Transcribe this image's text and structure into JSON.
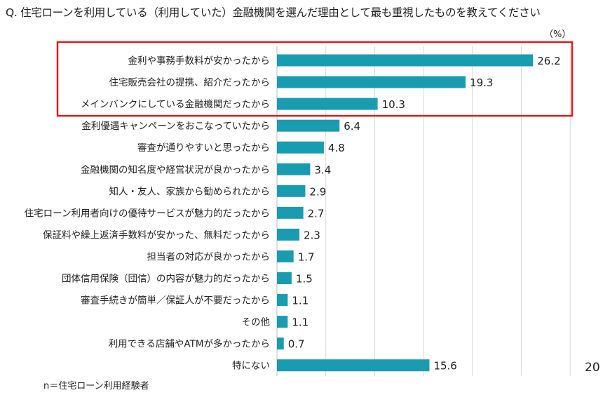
{
  "question": "Q. 住宅ローンを利用している（利用していた）金融機関を選んだ理由として最も重視したものを教えてください",
  "unit": "（%）",
  "sample_note": "n＝住宅ローン利用経験者",
  "page_number": "20",
  "colors": {
    "bar": "#1a9cb0",
    "highlight_box": "#e01b1b",
    "gridline": "#d9d9d9",
    "text": "#222222"
  },
  "highlight": {
    "from_index": 0,
    "to_index": 2
  },
  "chart_data": {
    "type": "bar",
    "orientation": "horizontal",
    "categories": [
      "金利や事務手数料が安かったから",
      "住宅販売会社の提携、紹介だったから",
      "メインバンクにしている金融機関だったから",
      "金利優遇キャンペーンをおこなっていたから",
      "審査が通りやすいと思ったから",
      "金融機関の知名度や経営状況が良かったから",
      "知人・友人、家族から勧められたから",
      "住宅ローン利用者向けの優待サービスが魅力的だったから",
      "保証料や繰上返済手数料が安かった、無料だったから",
      "担当者の対応が良かったから",
      "団体信用保険（団信）の内容が魅力的だったから",
      "審査手続きが簡単／保証人が不要だったから",
      "その他",
      "利用できる店舗やATMが多かったから",
      "特にない"
    ],
    "values": [
      26.2,
      19.3,
      10.3,
      6.4,
      4.8,
      3.4,
      2.9,
      2.7,
      2.3,
      1.7,
      1.5,
      1.1,
      1.1,
      0.7,
      15.6
    ],
    "value_labels": [
      "26.2",
      "19.3",
      "10.3",
      "6.4",
      "4.8",
      "3.4",
      "2.9",
      "2.7",
      "2.3",
      "1.7",
      "1.5",
      "1.1",
      "1.1",
      "0.7",
      "15.6"
    ],
    "xlim": [
      0,
      30
    ],
    "gridlines": [
      5,
      10,
      15,
      20,
      25,
      30
    ],
    "grid": true,
    "legend": false
  }
}
